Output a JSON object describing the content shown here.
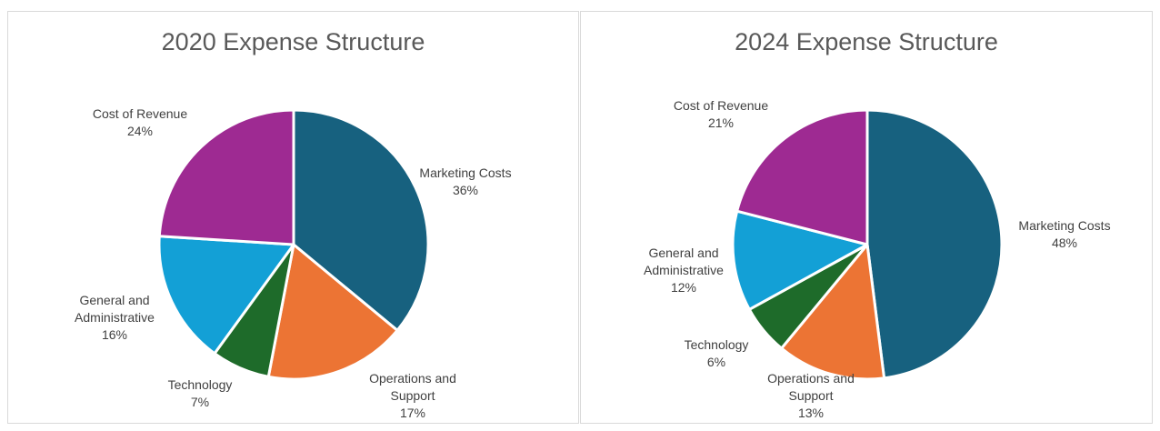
{
  "colors": {
    "marketing": "#17617f",
    "operations": "#ec7434",
    "technology": "#1e6b2a",
    "general": "#13a0d6",
    "cost": "#9e2a92"
  },
  "chart_data": [
    {
      "type": "pie",
      "title": "2020 Expense Structure",
      "slices": [
        {
          "label": [
            "Marketing Costs"
          ],
          "value": 36,
          "pct": "36%",
          "color": "#17617f"
        },
        {
          "label": [
            "Operations and",
            "Support"
          ],
          "value": 17,
          "pct": "17%",
          "color": "#ec7434"
        },
        {
          "label": [
            "Technology"
          ],
          "value": 7,
          "pct": "7%",
          "color": "#1e6b2a"
        },
        {
          "label": [
            "General and",
            "Administrative"
          ],
          "value": 16,
          "pct": "16%",
          "color": "#13a0d6"
        },
        {
          "label": [
            "Cost of Revenue"
          ],
          "value": 24,
          "pct": "24%",
          "color": "#9e2a92"
        }
      ]
    },
    {
      "type": "pie",
      "title": "2024 Expense Structure",
      "slices": [
        {
          "label": [
            "Marketing Costs"
          ],
          "value": 48,
          "pct": "48%",
          "color": "#17617f"
        },
        {
          "label": [
            "Operations and",
            "Support"
          ],
          "value": 13,
          "pct": "13%",
          "color": "#ec7434"
        },
        {
          "label": [
            "Technology"
          ],
          "value": 6,
          "pct": "6%",
          "color": "#1e6b2a"
        },
        {
          "label": [
            "General and",
            "Administrative"
          ],
          "value": 12,
          "pct": "12%",
          "color": "#13a0d6"
        },
        {
          "label": [
            "Cost of Revenue"
          ],
          "value": 21,
          "pct": "21%",
          "color": "#9e2a92"
        }
      ]
    }
  ]
}
